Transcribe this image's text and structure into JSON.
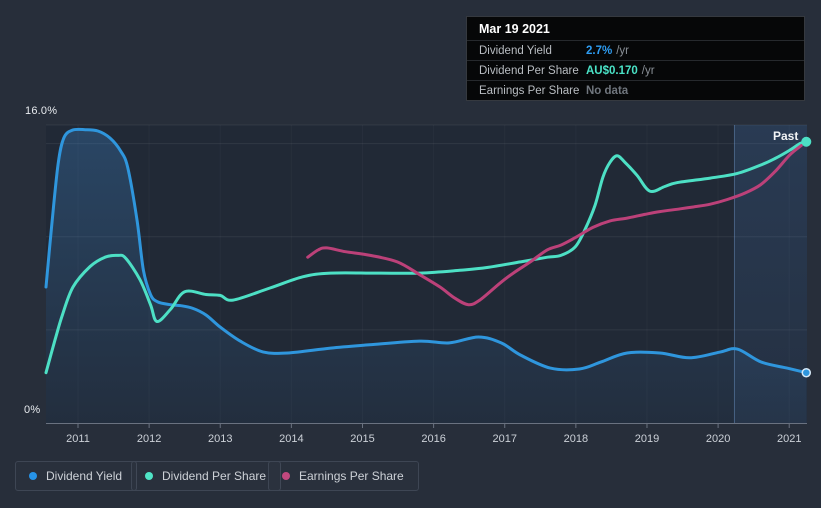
{
  "tooltip": {
    "date": "Mar 19 2021",
    "rows": [
      {
        "label": "Dividend Yield",
        "value": "2.7%",
        "suffix": "/yr",
        "color": "#2e9df2"
      },
      {
        "label": "Dividend Per Share",
        "value": "AU$0.170",
        "suffix": "/yr",
        "color": "#4ae3c7"
      },
      {
        "label": "Earnings Per Share",
        "value": "No data",
        "suffix": "",
        "color": "#70767e"
      }
    ]
  },
  "legend": {
    "items": [
      {
        "label": "Dividend Yield",
        "color": "#2693e8"
      },
      {
        "label": "Dividend Per Share",
        "color": "#4fe4c6"
      },
      {
        "label": "Earnings Per Share",
        "color": "#c2487e"
      }
    ]
  },
  "chart_data": {
    "type": "line",
    "y_axis": {
      "max_label": "16.0%",
      "min_label": "0%",
      "ymin": 0,
      "ymax": 16,
      "gridline_values": [
        5,
        10,
        15,
        16
      ]
    },
    "x_axis": {
      "xmin": 2010.55,
      "xmax": 2021.25,
      "tick_years": [
        2011,
        2012,
        2013,
        2014,
        2015,
        2016,
        2017,
        2018,
        2019,
        2020,
        2021
      ]
    },
    "past_label": "Past",
    "past_region_start": 2020.23,
    "colors": {
      "plot_bg": "#212936",
      "grid": "rgba(255,255,255,0.07)",
      "year_grid": "rgba(255,255,255,0.03)",
      "axis": "#6a7280",
      "past_fill_top": "rgba(74,130,200,0.20)",
      "past_fill_bottom": "rgba(74,130,200,0.08)",
      "past_line": "rgba(130,175,235,0.38)",
      "yield_fill_top": "rgba(62,138,210,0.30)",
      "yield_fill_bottom": "rgba(62,138,210,0.05)"
    },
    "series": [
      {
        "name": "Dividend Yield",
        "unit": "%",
        "color": "#2f96dd",
        "area": true,
        "end_marker": "ring",
        "points": [
          [
            2010.55,
            7.3
          ],
          [
            2010.63,
            10.6
          ],
          [
            2010.72,
            13.9
          ],
          [
            2010.8,
            15.3
          ],
          [
            2010.92,
            15.72
          ],
          [
            2011.1,
            15.75
          ],
          [
            2011.28,
            15.68
          ],
          [
            2011.45,
            15.3
          ],
          [
            2011.6,
            14.6
          ],
          [
            2011.7,
            13.7
          ],
          [
            2011.83,
            10.9
          ],
          [
            2011.92,
            8.2
          ],
          [
            2012.02,
            6.9
          ],
          [
            2012.12,
            6.5
          ],
          [
            2012.3,
            6.35
          ],
          [
            2012.45,
            6.3
          ],
          [
            2012.62,
            6.15
          ],
          [
            2012.8,
            5.8
          ],
          [
            2013.0,
            5.15
          ],
          [
            2013.28,
            4.4
          ],
          [
            2013.6,
            3.82
          ],
          [
            2013.95,
            3.76
          ],
          [
            2014.55,
            4.02
          ],
          [
            2015.1,
            4.2
          ],
          [
            2015.8,
            4.4
          ],
          [
            2016.22,
            4.3
          ],
          [
            2016.63,
            4.62
          ],
          [
            2016.95,
            4.3
          ],
          [
            2017.22,
            3.65
          ],
          [
            2017.64,
            2.95
          ],
          [
            2018.05,
            2.9
          ],
          [
            2018.35,
            3.27
          ],
          [
            2018.72,
            3.76
          ],
          [
            2019.18,
            3.76
          ],
          [
            2019.6,
            3.5
          ],
          [
            2020.02,
            3.8
          ],
          [
            2020.27,
            3.97
          ],
          [
            2020.6,
            3.28
          ],
          [
            2020.97,
            2.95
          ],
          [
            2021.24,
            2.7
          ]
        ]
      },
      {
        "name": "Dividend Per Share",
        "unit": "AU$",
        "color": "#4de0c5",
        "area": false,
        "end_marker": "dot",
        "points": [
          [
            2010.55,
            2.7
          ],
          [
            2010.68,
            4.5
          ],
          [
            2010.78,
            5.8
          ],
          [
            2010.93,
            7.3
          ],
          [
            2011.17,
            8.4
          ],
          [
            2011.38,
            8.9
          ],
          [
            2011.56,
            9.0
          ],
          [
            2011.67,
            8.85
          ],
          [
            2011.87,
            7.7
          ],
          [
            2012.02,
            6.35
          ],
          [
            2012.11,
            5.45
          ],
          [
            2012.3,
            6.1
          ],
          [
            2012.5,
            7.05
          ],
          [
            2012.8,
            6.9
          ],
          [
            2013.0,
            6.85
          ],
          [
            2013.18,
            6.6
          ],
          [
            2013.7,
            7.25
          ],
          [
            2014.16,
            7.85
          ],
          [
            2014.55,
            8.05
          ],
          [
            2015.2,
            8.05
          ],
          [
            2015.81,
            8.05
          ],
          [
            2016.37,
            8.2
          ],
          [
            2016.75,
            8.35
          ],
          [
            2017.22,
            8.65
          ],
          [
            2017.6,
            8.9
          ],
          [
            2017.79,
            9.0
          ],
          [
            2017.99,
            9.45
          ],
          [
            2018.13,
            10.4
          ],
          [
            2018.27,
            11.7
          ],
          [
            2018.38,
            13.2
          ],
          [
            2018.48,
            14.0
          ],
          [
            2018.58,
            14.35
          ],
          [
            2018.69,
            14.0
          ],
          [
            2018.86,
            13.3
          ],
          [
            2019.04,
            12.45
          ],
          [
            2019.25,
            12.7
          ],
          [
            2019.42,
            12.9
          ],
          [
            2019.89,
            13.15
          ],
          [
            2020.27,
            13.4
          ],
          [
            2020.6,
            13.85
          ],
          [
            2020.8,
            14.2
          ],
          [
            2021.01,
            14.65
          ],
          [
            2021.15,
            15.0
          ],
          [
            2021.24,
            15.1
          ]
        ]
      },
      {
        "name": "Earnings Per Share",
        "unit": "AU$",
        "color": "#bc4179",
        "area": false,
        "end_marker": "none",
        "points": [
          [
            2014.23,
            8.9
          ],
          [
            2014.38,
            9.3
          ],
          [
            2014.5,
            9.4
          ],
          [
            2014.76,
            9.2
          ],
          [
            2015.11,
            9.0
          ],
          [
            2015.49,
            8.65
          ],
          [
            2015.81,
            7.95
          ],
          [
            2016.09,
            7.3
          ],
          [
            2016.3,
            6.7
          ],
          [
            2016.49,
            6.35
          ],
          [
            2016.65,
            6.6
          ],
          [
            2016.93,
            7.5
          ],
          [
            2017.12,
            8.05
          ],
          [
            2017.36,
            8.65
          ],
          [
            2017.6,
            9.3
          ],
          [
            2017.79,
            9.55
          ],
          [
            2017.99,
            9.95
          ],
          [
            2018.24,
            10.5
          ],
          [
            2018.48,
            10.85
          ],
          [
            2018.72,
            11.0
          ],
          [
            2018.97,
            11.2
          ],
          [
            2019.18,
            11.35
          ],
          [
            2019.47,
            11.5
          ],
          [
            2019.65,
            11.6
          ],
          [
            2019.89,
            11.75
          ],
          [
            2020.13,
            12.0
          ],
          [
            2020.38,
            12.35
          ],
          [
            2020.6,
            12.8
          ],
          [
            2020.8,
            13.5
          ],
          [
            2021.01,
            14.4
          ],
          [
            2021.17,
            14.9
          ]
        ]
      }
    ]
  }
}
